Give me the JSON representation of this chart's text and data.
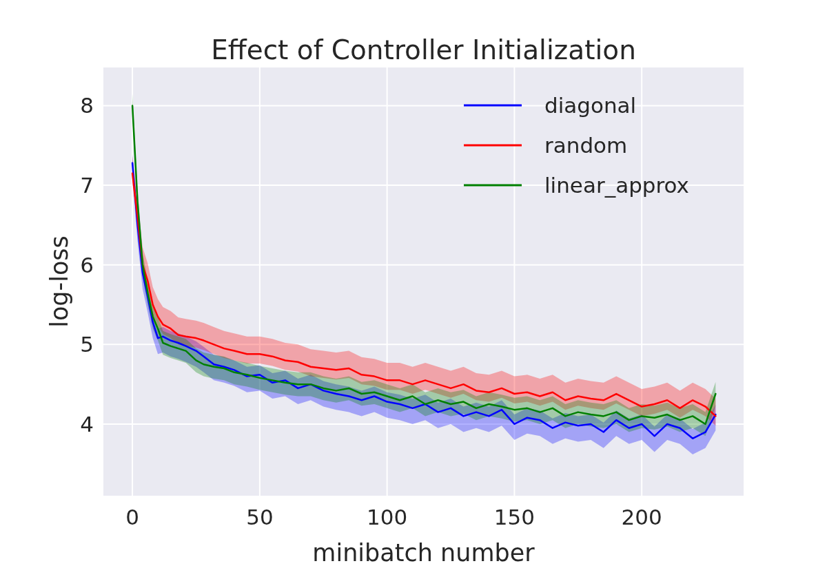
{
  "chart_data": {
    "type": "line",
    "title": "Effect of Controller Initialization",
    "xlabel": "minibatch number",
    "ylabel": "log-loss",
    "x": [
      0,
      2,
      4,
      6,
      8,
      10,
      12,
      15,
      18,
      21,
      25,
      28,
      32,
      36,
      40,
      45,
      50,
      55,
      60,
      65,
      70,
      75,
      80,
      85,
      90,
      95,
      100,
      105,
      110,
      115,
      120,
      125,
      130,
      135,
      140,
      145,
      150,
      155,
      160,
      165,
      170,
      175,
      180,
      185,
      190,
      195,
      200,
      205,
      210,
      215,
      220,
      225,
      229
    ],
    "xlim": [
      -11.4,
      240
    ],
    "xticks": [
      0,
      50,
      100,
      150,
      200
    ],
    "ylim": [
      3.1,
      8.48
    ],
    "yticks": [
      4,
      5,
      6,
      7,
      8
    ],
    "grid": true,
    "legend": "top right",
    "line_style": "solid",
    "marker": "none",
    "series": [
      {
        "name": "diagonal",
        "color": "#0000ff",
        "values": [
          7.28,
          6.5,
          5.9,
          5.6,
          5.28,
          5.08,
          5.1,
          5.05,
          5.02,
          4.98,
          4.92,
          4.85,
          4.75,
          4.72,
          4.68,
          4.6,
          4.62,
          4.52,
          4.55,
          4.45,
          4.5,
          4.42,
          4.38,
          4.35,
          4.3,
          4.35,
          4.28,
          4.25,
          4.2,
          4.25,
          4.15,
          4.2,
          4.1,
          4.15,
          4.1,
          4.18,
          4.0,
          4.08,
          4.05,
          3.95,
          4.02,
          3.98,
          4.0,
          3.9,
          4.05,
          3.95,
          4.0,
          3.85,
          4.0,
          3.95,
          3.82,
          3.9,
          4.12
        ],
        "lower": [
          7.08,
          6.3,
          5.7,
          5.4,
          5.08,
          4.88,
          4.9,
          4.85,
          4.82,
          4.78,
          4.72,
          4.65,
          4.55,
          4.52,
          4.48,
          4.4,
          4.42,
          4.32,
          4.35,
          4.25,
          4.3,
          4.22,
          4.18,
          4.15,
          4.1,
          4.15,
          4.08,
          4.05,
          4.0,
          4.05,
          3.95,
          4.0,
          3.9,
          3.95,
          3.9,
          3.98,
          3.8,
          3.88,
          3.85,
          3.75,
          3.82,
          3.78,
          3.8,
          3.7,
          3.85,
          3.75,
          3.8,
          3.65,
          3.8,
          3.75,
          3.62,
          3.7,
          3.92
        ],
        "upper": [
          7.4,
          6.62,
          6.02,
          5.72,
          5.4,
          5.2,
          5.22,
          5.17,
          5.14,
          5.1,
          5.04,
          4.97,
          4.87,
          4.84,
          4.8,
          4.72,
          4.74,
          4.64,
          4.67,
          4.57,
          4.62,
          4.54,
          4.5,
          4.47,
          4.42,
          4.47,
          4.4,
          4.37,
          4.32,
          4.37,
          4.27,
          4.32,
          4.22,
          4.27,
          4.22,
          4.3,
          4.12,
          4.2,
          4.17,
          4.07,
          4.14,
          4.1,
          4.12,
          4.02,
          4.17,
          4.07,
          4.12,
          3.97,
          4.12,
          4.07,
          3.94,
          4.02,
          4.24
        ]
      },
      {
        "name": "random",
        "color": "#ff0000",
        "values": [
          7.15,
          6.6,
          6.0,
          5.8,
          5.5,
          5.35,
          5.25,
          5.2,
          5.12,
          5.1,
          5.08,
          5.05,
          5.0,
          4.95,
          4.92,
          4.88,
          4.88,
          4.85,
          4.8,
          4.78,
          4.72,
          4.7,
          4.68,
          4.7,
          4.62,
          4.6,
          4.55,
          4.55,
          4.5,
          4.55,
          4.5,
          4.45,
          4.5,
          4.42,
          4.4,
          4.45,
          4.38,
          4.4,
          4.35,
          4.4,
          4.3,
          4.35,
          4.32,
          4.3,
          4.38,
          4.3,
          4.22,
          4.25,
          4.3,
          4.2,
          4.3,
          4.22,
          4.1
        ],
        "lower": [
          7.03,
          6.48,
          5.88,
          5.68,
          5.38,
          5.23,
          5.13,
          5.08,
          5.0,
          4.98,
          4.96,
          4.93,
          4.88,
          4.83,
          4.8,
          4.76,
          4.76,
          4.73,
          4.68,
          4.66,
          4.6,
          4.58,
          4.56,
          4.58,
          4.5,
          4.48,
          4.43,
          4.43,
          4.38,
          4.43,
          4.38,
          4.33,
          4.38,
          4.3,
          4.28,
          4.33,
          4.26,
          4.28,
          4.23,
          4.28,
          4.18,
          4.23,
          4.2,
          4.18,
          4.26,
          4.18,
          4.1,
          4.13,
          4.18,
          4.08,
          4.18,
          4.1,
          3.98
        ],
        "upper": [
          7.37,
          6.82,
          6.22,
          6.02,
          5.72,
          5.57,
          5.47,
          5.42,
          5.34,
          5.32,
          5.3,
          5.27,
          5.22,
          5.17,
          5.14,
          5.1,
          5.1,
          5.07,
          5.02,
          5.0,
          4.94,
          4.92,
          4.9,
          4.92,
          4.84,
          4.82,
          4.77,
          4.77,
          4.72,
          4.77,
          4.72,
          4.67,
          4.72,
          4.64,
          4.62,
          4.67,
          4.6,
          4.62,
          4.57,
          4.62,
          4.52,
          4.57,
          4.54,
          4.52,
          4.6,
          4.52,
          4.44,
          4.47,
          4.52,
          4.42,
          4.52,
          4.44,
          4.32
        ]
      },
      {
        "name": "linear_approx",
        "color": "#008000",
        "values": [
          8.0,
          6.8,
          6.0,
          5.65,
          5.35,
          5.2,
          5.02,
          4.98,
          4.95,
          4.92,
          4.8,
          4.75,
          4.72,
          4.7,
          4.65,
          4.62,
          4.58,
          4.55,
          4.52,
          4.5,
          4.5,
          4.45,
          4.42,
          4.45,
          4.38,
          4.4,
          4.35,
          4.3,
          4.35,
          4.25,
          4.3,
          4.25,
          4.28,
          4.2,
          4.25,
          4.22,
          4.18,
          4.2,
          4.15,
          4.2,
          4.1,
          4.15,
          4.12,
          4.1,
          4.15,
          4.05,
          4.1,
          4.08,
          4.12,
          4.05,
          4.1,
          4.0,
          4.38
        ],
        "lower": [
          7.85,
          6.65,
          5.85,
          5.5,
          5.2,
          5.05,
          4.87,
          4.83,
          4.8,
          4.77,
          4.65,
          4.6,
          4.57,
          4.55,
          4.5,
          4.47,
          4.43,
          4.4,
          4.37,
          4.35,
          4.35,
          4.3,
          4.27,
          4.3,
          4.23,
          4.25,
          4.2,
          4.15,
          4.2,
          4.1,
          4.15,
          4.1,
          4.13,
          4.05,
          4.1,
          4.07,
          4.03,
          4.05,
          4.0,
          4.05,
          3.95,
          4.0,
          3.97,
          3.95,
          4.0,
          3.9,
          3.95,
          3.93,
          3.97,
          3.9,
          3.95,
          3.85,
          4.23
        ],
        "upper": [
          8.15,
          6.95,
          6.15,
          5.8,
          5.5,
          5.35,
          5.17,
          5.13,
          5.1,
          5.07,
          4.95,
          4.9,
          4.87,
          4.85,
          4.8,
          4.77,
          4.73,
          4.7,
          4.67,
          4.65,
          4.65,
          4.6,
          4.57,
          4.6,
          4.53,
          4.55,
          4.5,
          4.45,
          4.5,
          4.4,
          4.45,
          4.4,
          4.43,
          4.35,
          4.4,
          4.37,
          4.33,
          4.35,
          4.3,
          4.35,
          4.25,
          4.3,
          4.27,
          4.25,
          4.3,
          4.2,
          4.25,
          4.23,
          4.27,
          4.2,
          4.25,
          4.15,
          4.53
        ]
      }
    ]
  }
}
